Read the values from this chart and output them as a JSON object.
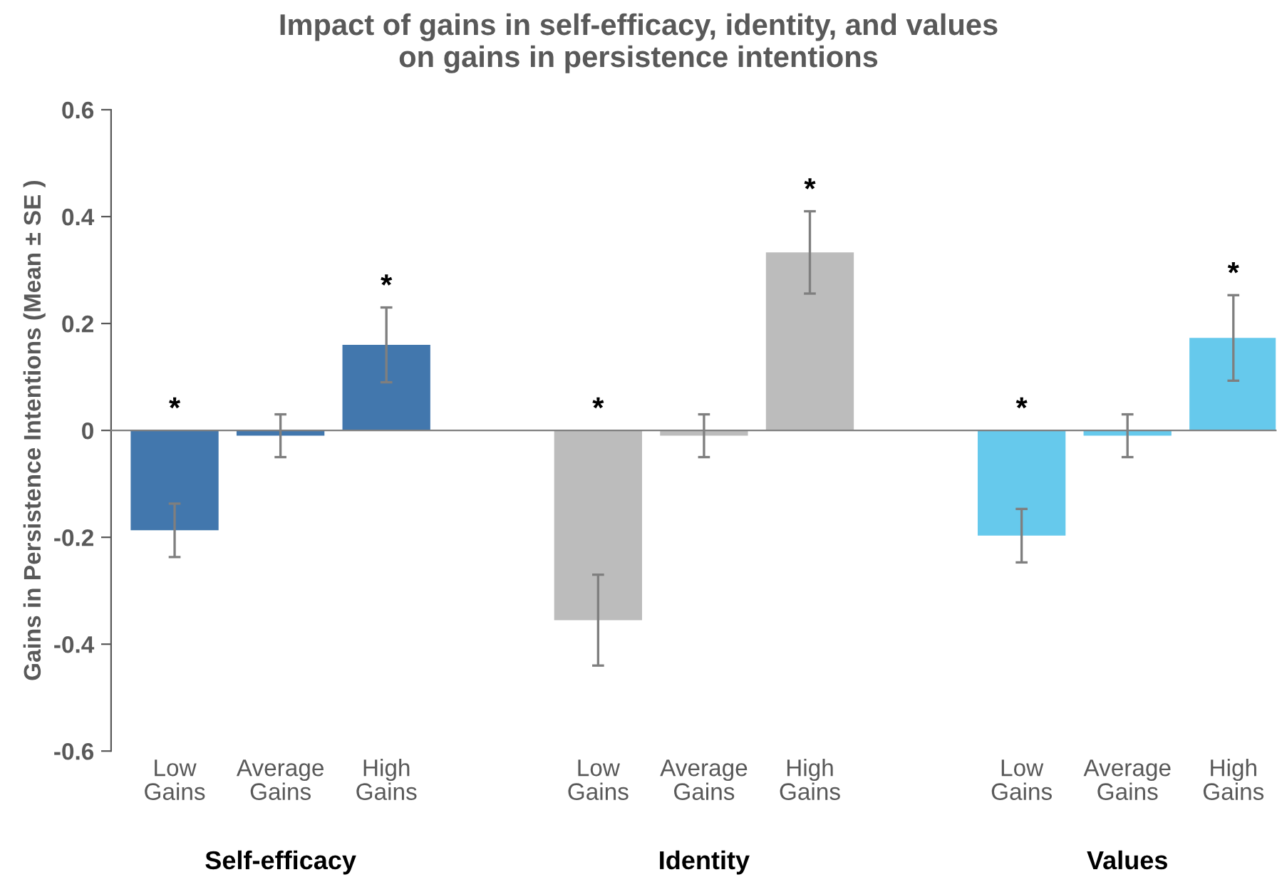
{
  "chart_data": {
    "type": "bar",
    "title": "Impact of gains in self-efficacy, identity, and values\non gains in persistence intentions",
    "ylabel": "Gains in Persistence Intentions (Mean ± SE )",
    "categories": [
      "Low\nGains",
      "Average\nGains",
      "High\nGains",
      null,
      "Low\nGains",
      "Average\nGains",
      "High\nGains",
      null,
      "Low\nGains",
      "Average\nGains",
      "High\nGains"
    ],
    "values": [
      -0.187,
      -0.01,
      0.16,
      null,
      -0.355,
      -0.01,
      0.333,
      null,
      -0.197,
      -0.01,
      0.173
    ],
    "errors": [
      0.05,
      0.04,
      0.07,
      null,
      0.085,
      0.04,
      0.077,
      null,
      0.05,
      0.04,
      0.08
    ],
    "colors": [
      "#4277ad",
      "#4277ad",
      "#4277ad",
      null,
      "#bcbcbc",
      "#bcbcbc",
      "#bcbcbc",
      null,
      "#66c9ec",
      "#66c9ec",
      "#66c9ec"
    ],
    "value_labels": [
      "*",
      null,
      "*",
      null,
      "*",
      null,
      "*",
      null,
      "*",
      null,
      "*"
    ],
    "annotations": [
      "Self-efficacy",
      "Identity",
      "Values"
    ],
    "ylim": [
      -0.6,
      0.6
    ],
    "yticks": [
      {
        "value": -0.6,
        "label": "-0.6"
      },
      {
        "value": -0.4,
        "label": "-0.4"
      },
      {
        "value": -0.2,
        "label": "-0.2"
      },
      0,
      0.2,
      0.4,
      0.6
    ],
    "legend": false
  }
}
